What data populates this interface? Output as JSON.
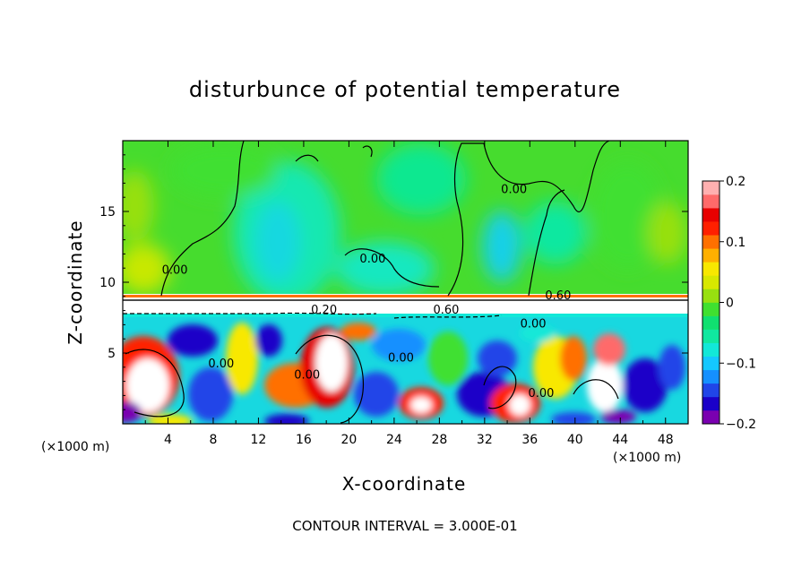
{
  "chart_data": {
    "type": "heatmap",
    "title": "disturbunce of potential temperature",
    "xlabel": "X-coordinate",
    "ylabel": "Z-coordinate",
    "x_unit": "(×1000 m)",
    "z_unit": "(×1000 m)",
    "footer": "CONTOUR INTERVAL = 3.000E-01",
    "xlim": [
      0,
      50
    ],
    "ylim": [
      0,
      20
    ],
    "x_ticks": [
      4,
      8,
      12,
      16,
      20,
      24,
      28,
      32,
      36,
      40,
      44,
      48
    ],
    "x_tick_labels": [
      "4",
      "8",
      "12",
      "16",
      "20",
      "24",
      "28",
      "32",
      "36",
      "40",
      "44",
      "48"
    ],
    "y_ticks": [
      5,
      10,
      15
    ],
    "y_tick_labels": [
      "5",
      "10",
      "15"
    ],
    "colorbar": {
      "range": [
        -0.2,
        0.2
      ],
      "tick_labels": [
        "0.2",
        "0.1",
        "0",
        "−0.1",
        "−0.2"
      ],
      "tick_values": [
        0.2,
        0.1,
        0,
        -0.1,
        -0.2
      ],
      "colors": [
        "#7a00b0",
        "#1a00c8",
        "#2045e8",
        "#1590ff",
        "#14c8ff",
        "#12e8d8",
        "#10e8a0",
        "#10e070",
        "#40e030",
        "#98e010",
        "#d8e800",
        "#f8e800",
        "#ffb000",
        "#ff7000",
        "#ff2000",
        "#e80000",
        "#ff6a6a",
        "#ffb0b0"
      ]
    },
    "contour_labels": [
      {
        "text": "0.00",
        "x": 4.6,
        "z": 10.6
      },
      {
        "text": "0.00",
        "x": 34.6,
        "z": 16.3
      },
      {
        "text": "0.00",
        "x": 22.1,
        "z": 11.4
      },
      {
        "text": "0.60",
        "x": 38.5,
        "z": 8.8
      },
      {
        "text": "0.60",
        "x": 28.6,
        "z": 7.8
      },
      {
        "text": "0.20",
        "x": 17.8,
        "z": 7.8
      },
      {
        "text": "0.00",
        "x": 36.3,
        "z": 6.8
      },
      {
        "text": "0.00",
        "x": 8.7,
        "z": 4.0
      },
      {
        "text": "0.00",
        "x": 16.3,
        "z": 3.2
      },
      {
        "text": "0.00",
        "x": 24.6,
        "z": 4.4
      },
      {
        "text": "0.00",
        "x": 37.0,
        "z": 1.9
      }
    ]
  }
}
